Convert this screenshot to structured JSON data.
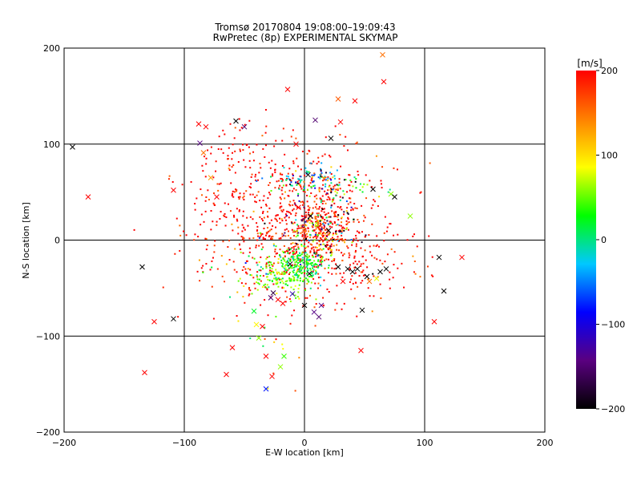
{
  "chart_data": {
    "type": "scatter",
    "title": "Tromsø 20170804 19:08:00–19:09:43",
    "subtitle": "RwPretec (8p) EXPERIMENTAL SKYMAP",
    "xlabel": "E-W location [km]",
    "ylabel": "N-S location [km]",
    "xlim": [
      -200,
      200
    ],
    "ylim": [
      -200,
      200
    ],
    "xticks": [
      "−200",
      "−100",
      "0",
      "100",
      "200"
    ],
    "yticks": [
      "−200",
      "−100",
      "0",
      "100",
      "200"
    ],
    "grid": true,
    "colorbar": {
      "label": "[m/s]",
      "range": [
        -200,
        200
      ],
      "ticks": [
        "200",
        "100",
        "0",
        "−100",
        "−200"
      ],
      "colors": [
        "#000000",
        "#5a0080",
        "#0000ff",
        "#00c8ff",
        "#00ff00",
        "#ffff00",
        "#ff8000",
        "#ff0000"
      ]
    },
    "series": [
      {
        "marker": "x",
        "points": [
          [
            -193,
            97,
            -200
          ],
          [
            -180,
            45,
            200
          ],
          [
            -135,
            -28,
            -200
          ],
          [
            -133,
            -138,
            200
          ],
          [
            -125,
            -85,
            200
          ],
          [
            -109,
            -82,
            -200
          ],
          [
            -109,
            52,
            200
          ],
          [
            -88,
            121,
            200
          ],
          [
            -87,
            101,
            -140
          ],
          [
            -84,
            91,
            150
          ],
          [
            -82,
            118,
            200
          ],
          [
            -78,
            65,
            130
          ],
          [
            -73,
            45,
            200
          ],
          [
            -65,
            -140,
            200
          ],
          [
            -60,
            -112,
            200
          ],
          [
            -57,
            124,
            -200
          ],
          [
            -50,
            118,
            -150
          ],
          [
            -42,
            -74,
            20
          ],
          [
            -40,
            -88,
            90
          ],
          [
            -38,
            -102,
            60
          ],
          [
            -35,
            -90,
            200
          ],
          [
            -32,
            -121,
            200
          ],
          [
            -32,
            -155,
            -80
          ],
          [
            -28,
            -60,
            -150
          ],
          [
            -27,
            -142,
            200
          ],
          [
            -26,
            -55,
            -170
          ],
          [
            -22,
            -62,
            200
          ],
          [
            -20,
            -132,
            60
          ],
          [
            -18,
            -66,
            200
          ],
          [
            -17,
            -121,
            40
          ],
          [
            -14,
            157,
            200
          ],
          [
            -12,
            -25,
            -200
          ],
          [
            -10,
            -56,
            -120
          ],
          [
            -7,
            100,
            200
          ],
          [
            -5,
            34,
            200
          ],
          [
            0,
            -68,
            -200
          ],
          [
            3,
            68,
            -200
          ],
          [
            4,
            -35,
            -200
          ],
          [
            5,
            25,
            -200
          ],
          [
            8,
            -75,
            -140
          ],
          [
            9,
            125,
            -150
          ],
          [
            12,
            -80,
            -150
          ],
          [
            14,
            -68,
            -140
          ],
          [
            20,
            10,
            -200
          ],
          [
            22,
            106,
            -200
          ],
          [
            28,
            147,
            160
          ],
          [
            28,
            -28,
            -200
          ],
          [
            30,
            123,
            200
          ],
          [
            32,
            -43,
            200
          ],
          [
            36,
            -30,
            -200
          ],
          [
            40,
            -33,
            -200
          ],
          [
            42,
            145,
            200
          ],
          [
            44,
            -30,
            -200
          ],
          [
            47,
            -115,
            200
          ],
          [
            48,
            -73,
            -200
          ],
          [
            52,
            -38,
            -200
          ],
          [
            54,
            -43,
            150
          ],
          [
            57,
            53,
            -200
          ],
          [
            60,
            -40,
            80
          ],
          [
            63,
            -33,
            -200
          ],
          [
            65,
            193,
            150
          ],
          [
            66,
            165,
            200
          ],
          [
            68,
            -30,
            -200
          ],
          [
            72,
            48,
            60
          ],
          [
            75,
            45,
            -200
          ],
          [
            88,
            25,
            60
          ],
          [
            108,
            -85,
            200
          ],
          [
            112,
            -18,
            -200
          ],
          [
            116,
            -53,
            -200
          ],
          [
            131,
            -18,
            200
          ]
        ]
      },
      {
        "marker": "dot",
        "clusters": [
          {
            "cx": -10,
            "cy": 10,
            "sx": 42,
            "sy": 35,
            "n": 720,
            "v": 200,
            "dv": 25
          },
          {
            "cx": -5,
            "cy": 55,
            "sx": 35,
            "sy": 30,
            "n": 150,
            "v": 200,
            "dv": 25
          },
          {
            "cx": -15,
            "cy": -35,
            "sx": 12,
            "sy": 12,
            "n": 170,
            "v": 55,
            "dv": 25
          },
          {
            "cx": 0,
            "cy": -25,
            "sx": 8,
            "sy": 8,
            "n": 130,
            "v": 20,
            "dv": 25
          },
          {
            "cx": 10,
            "cy": 10,
            "sx": 12,
            "sy": 12,
            "n": 180,
            "v": 140,
            "dv": 80
          },
          {
            "cx": 5,
            "cy": 65,
            "sx": 15,
            "sy": 6,
            "n": 60,
            "v": -35,
            "dv": 40
          },
          {
            "cx": 25,
            "cy": 55,
            "sx": 20,
            "sy": 10,
            "n": 50,
            "v": 60,
            "dv": 40
          },
          {
            "cx": 10,
            "cy": 20,
            "sx": 20,
            "sy": 25,
            "n": 70,
            "v": -160,
            "dv": 40
          },
          {
            "cx": 40,
            "cy": -25,
            "sx": 30,
            "sy": 20,
            "n": 90,
            "v": 200,
            "dv": 40
          },
          {
            "cx": -35,
            "cy": -30,
            "sx": 25,
            "sy": 15,
            "n": 40,
            "v": 40,
            "dv": 60
          },
          {
            "cx": -30,
            "cy": -90,
            "sx": 12,
            "sy": 40,
            "n": 20,
            "v": 90,
            "dv": 60
          },
          {
            "cx": -60,
            "cy": 90,
            "sx": 15,
            "sy": 20,
            "n": 40,
            "v": 200,
            "dv": 30
          }
        ]
      }
    ]
  }
}
